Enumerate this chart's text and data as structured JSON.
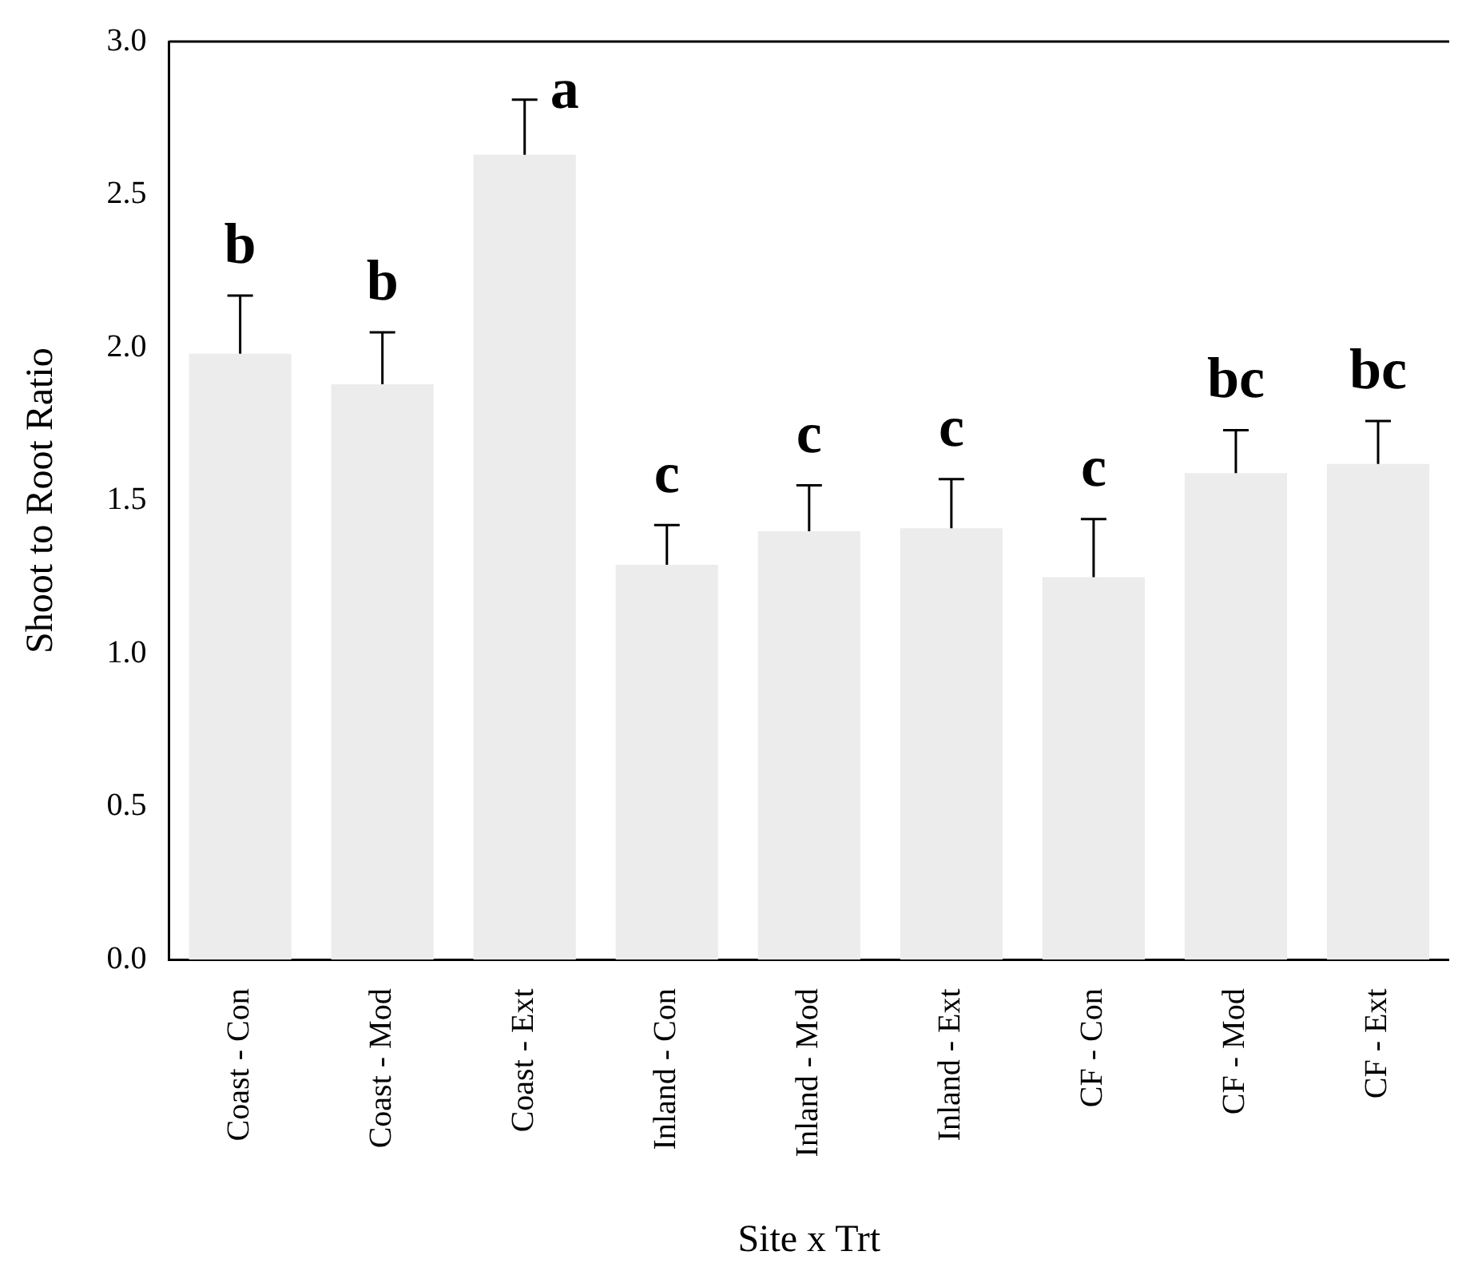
{
  "chart_data": {
    "type": "bar",
    "xlabel": "Site x Trt",
    "ylabel": "Shoot to Root Ratio",
    "categories": [
      "Coast - Con",
      "Coast - Mod",
      "Coast - Ext",
      "Inland - Con",
      "Inland - Mod",
      "Inland - Ext",
      "CF - Con",
      "CF - Mod",
      "CF - Ext"
    ],
    "values": [
      1.98,
      1.88,
      2.63,
      1.29,
      1.4,
      1.41,
      1.25,
      1.59,
      1.62
    ],
    "errors": [
      [
        1.98,
        2.17
      ],
      [
        1.88,
        2.05
      ],
      [
        2.63,
        2.81
      ],
      [
        1.29,
        1.42
      ],
      [
        1.4,
        1.55
      ],
      [
        1.41,
        1.57
      ],
      [
        1.25,
        1.44
      ],
      [
        1.59,
        1.73
      ],
      [
        1.62,
        1.76
      ]
    ],
    "color": "#ececec",
    "ylim": [
      0,
      3
    ],
    "yticks": [
      {
        "value": 0,
        "label": "0.0"
      },
      {
        "value": 0.5,
        "label": "0.5"
      },
      {
        "value": 1,
        "label": "1.0"
      },
      {
        "value": 1.5,
        "label": "1.5"
      },
      {
        "value": 2,
        "label": "2.0"
      },
      {
        "value": 2.5,
        "label": "2.5"
      },
      {
        "value": 3,
        "label": "3.0"
      }
    ],
    "grid": false,
    "legend": false,
    "annotations": [
      {
        "text": "b",
        "x": "Coast - Con",
        "y": 2.17
      },
      {
        "text": "b",
        "x": "Coast - Mod",
        "y": 2.05
      },
      {
        "text": "a",
        "x": "Coast - Ext",
        "y": 2.81
      },
      {
        "text": "c",
        "x": "Inland - Con",
        "y": 1.42
      },
      {
        "text": "c",
        "x": "Inland - Mod",
        "y": 1.55
      },
      {
        "text": "c",
        "x": "Inland - Ext",
        "y": 1.57
      },
      {
        "text": "c",
        "x": "CF - Con",
        "y": 1.44
      },
      {
        "text": "bc",
        "x": "CF - Mod",
        "y": 1.73
      },
      {
        "text": "bc",
        "x": "CF - Ext",
        "y": 1.76
      }
    ]
  }
}
